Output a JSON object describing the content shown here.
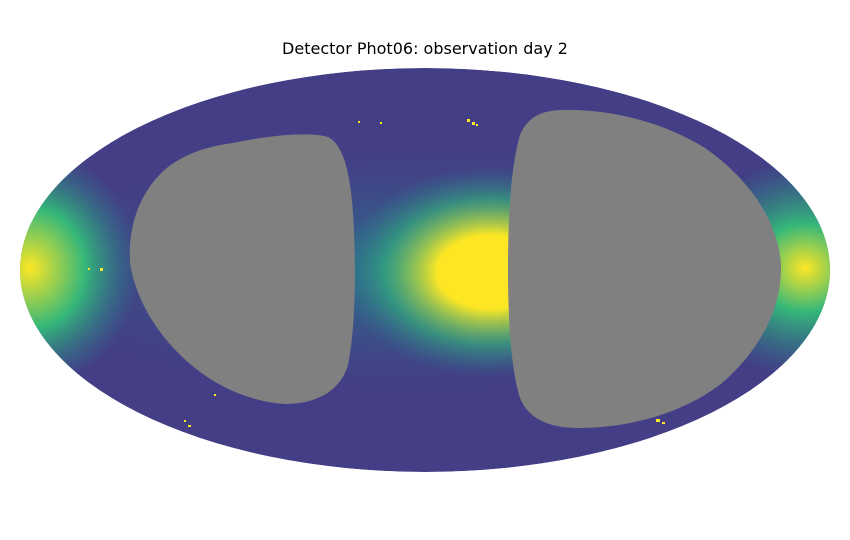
{
  "figure": {
    "title": "Detector Phot06: observation day 2"
  },
  "map": {
    "projection": "mollweide",
    "colormap": "viridis",
    "colors": {
      "low": "#433e85",
      "mid_low": "#38598c",
      "mid": "#26828e",
      "mid_high": "#35b779",
      "high": "#fde725",
      "unobserved": "#808080",
      "background": "#ffffff"
    },
    "regions": [
      {
        "name": "unobserved-region-left"
      },
      {
        "name": "unobserved-region-right"
      }
    ]
  }
}
